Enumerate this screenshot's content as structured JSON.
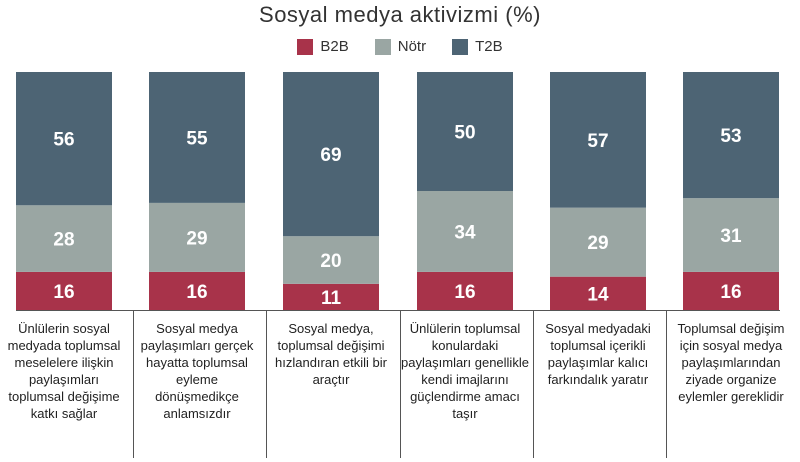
{
  "colors": {
    "B2B": "#a8334a",
    "Nötr": "#9aa6a3",
    "T2B": "#4d6474"
  },
  "chart_data": {
    "type": "bar",
    "stacked": true,
    "title": "Sosyal medya aktivizmi (%)",
    "legend_position": "top",
    "categories": [
      "Ünlülerin sosyal medyada toplumsal meselelere ilişkin paylaşımları toplumsal değişime katkı sağlar",
      "Sosyal medya paylaşımları gerçek hayatta toplumsal eyleme dönüşmedikçe anlamsızdır",
      "Sosyal medya, toplumsal değişimi hızlandıran etkili bir araçtır",
      "Ünlülerin toplumsal konulardaki paylaşımları genellikle kendi imajlarını güçlendirme amacı taşır",
      "Sosyal medyadaki toplumsal içerikli paylaşımlar kalıcı farkındalık yaratır",
      "Toplumsal değişim için sosyal medya paylaşımlarından ziyade organize eylemler gereklidir"
    ],
    "series": [
      {
        "name": "B2B",
        "values": [
          16,
          16,
          11,
          16,
          14,
          16
        ]
      },
      {
        "name": "Nötr",
        "values": [
          28,
          29,
          20,
          34,
          29,
          31
        ]
      },
      {
        "name": "T2B",
        "values": [
          56,
          55,
          69,
          50,
          57,
          53
        ]
      }
    ],
    "ylim": [
      0,
      100
    ]
  }
}
